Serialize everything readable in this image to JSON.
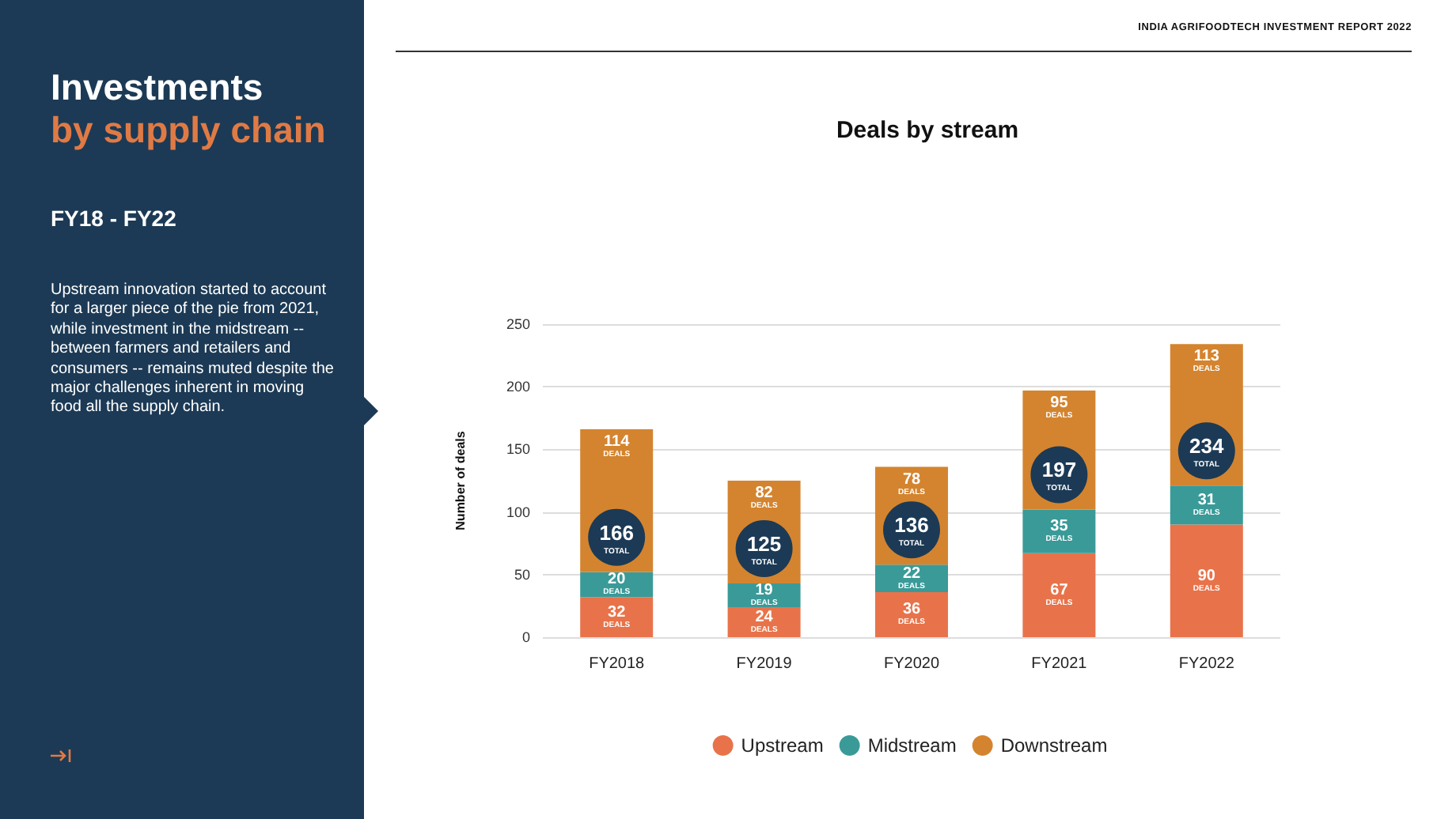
{
  "chart_data": {
    "type": "bar",
    "title": "Deals by stream",
    "ylabel": "Number of deals",
    "stacked": true,
    "categories": [
      "FY2018",
      "FY2019",
      "FY2020",
      "FY2021",
      "FY2022"
    ],
    "series": [
      {
        "name": "Upstream",
        "color": "#e8734a",
        "values": [
          32,
          24,
          36,
          67,
          90
        ],
        "value_labels": [
          "32 DEALS",
          "24 DEALS",
          "36 DEALS",
          "67 DEALS",
          "90 DEALS"
        ]
      },
      {
        "name": "Midstream",
        "color": "#3a9a98",
        "values": [
          20,
          19,
          22,
          35,
          31
        ],
        "value_labels": [
          "20 DEALS",
          "19 DEALS",
          "22 DEALS",
          "35 DEALS",
          "31 DEALS"
        ]
      },
      {
        "name": "Downstream",
        "color": "#d4842f",
        "values": [
          114,
          82,
          78,
          95,
          113
        ],
        "value_labels": [
          "114 DEALS",
          "82 DEALS",
          "78 DEALS",
          "95 DEALS",
          "113 DEALS"
        ]
      }
    ],
    "totals": [
      "166 TOTAL",
      "125 TOTAL",
      "136 TOTAL",
      "197 TOTAL",
      "234 TOTAL"
    ],
    "ylim": [
      0,
      250
    ],
    "yticks": [
      0,
      50,
      100,
      150,
      200,
      250
    ],
    "grid": "y",
    "legend": "bottom",
    "annotations": [
      "INDIA AGRIFOODTECH INVESTMENT REPORT 2022",
      "Investments",
      "by supply chain",
      "FY18 - FY22",
      "Upstream innovation started to account for a larger piece of the pie from 2021, while investment in the midstream -- between farmers and retailers and consumers -- remains muted despite the major challenges inherent in moving food all the supply chain."
    ]
  }
}
